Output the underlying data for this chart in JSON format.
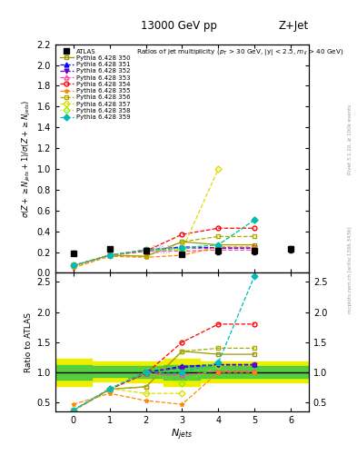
{
  "title_top": "13000 GeV pp",
  "title_right": "Z+Jet",
  "subtitle": "Ratios of jet multiplicity (p_{T} > 30 GeV, |y| < 2.5, m_{ll} > 40 GeV)",
  "ylabel_main": "σ(Z + ≥ N_{jets}+1) / σ(Z + ≥ N_{jets})",
  "ylabel_ratio": "Ratio to ATLAS",
  "xlabel": "N_{jets}",
  "right_label": "Rivet 3.1.10, ≥ 100k events",
  "watermark": "mcplots.cern.ch [arXiv:1306.3436]",
  "xlim": [
    -0.5,
    6.5
  ],
  "ylim_main": [
    0.0,
    2.2
  ],
  "ylim_ratio": [
    0.35,
    2.65
  ],
  "yticks_main": [
    0.0,
    0.2,
    0.4,
    0.6,
    0.8,
    1.0,
    1.2,
    1.4,
    1.6,
    1.8,
    2.0,
    2.2
  ],
  "yticks_ratio": [
    0.5,
    1.0,
    1.5,
    2.0,
    2.5
  ],
  "xticks": [
    0,
    1,
    2,
    3,
    4,
    5,
    6
  ],
  "atlas_x": [
    0,
    1,
    2,
    3,
    4,
    5,
    6
  ],
  "atlas_y": [
    0.19,
    0.23,
    0.21,
    0.18,
    0.21,
    0.21,
    0.23
  ],
  "atlas_yerr_lo": [
    0.02,
    0.02,
    0.02,
    0.02,
    0.03,
    0.03,
    0.03
  ],
  "atlas_yerr_hi": [
    0.02,
    0.02,
    0.02,
    0.02,
    0.03,
    0.03,
    0.03
  ],
  "band_edges": [
    -0.5,
    0.5,
    1.5,
    2.5,
    3.5,
    4.5,
    5.5,
    6.5
  ],
  "outer_lo": [
    0.78,
    0.85,
    0.83,
    0.78,
    0.83,
    0.83,
    0.83
  ],
  "outer_hi": [
    1.22,
    1.18,
    1.18,
    1.22,
    1.18,
    1.18,
    1.18
  ],
  "inner_lo": [
    0.88,
    0.93,
    0.91,
    0.88,
    0.91,
    0.91,
    0.91
  ],
  "inner_hi": [
    1.12,
    1.1,
    1.1,
    1.12,
    1.1,
    1.1,
    1.1
  ],
  "series": [
    {
      "label": "Pythia 6.428 350",
      "color": "#999900",
      "marker": "s",
      "ls": "-",
      "fillstyle": "none",
      "x": [
        0,
        1,
        2,
        3,
        4,
        5
      ],
      "y": [
        0.07,
        0.17,
        0.16,
        0.3,
        0.27,
        0.27
      ],
      "ratio": [
        0.37,
        0.72,
        0.76,
        1.35,
        1.3,
        1.3
      ]
    },
    {
      "label": "Pythia 6.428 351",
      "color": "#0000ff",
      "marker": "^",
      "ls": "--",
      "fillstyle": "full",
      "x": [
        0,
        1,
        2,
        3,
        4,
        5
      ],
      "y": [
        0.07,
        0.17,
        0.22,
        0.25,
        0.24,
        0.24
      ],
      "ratio": [
        0.37,
        0.72,
        1.0,
        1.1,
        1.13,
        1.13
      ]
    },
    {
      "label": "Pythia 6.428 352",
      "color": "#6600cc",
      "marker": "v",
      "ls": "--",
      "fillstyle": "full",
      "x": [
        0,
        1,
        2,
        3,
        4,
        5
      ],
      "y": [
        0.07,
        0.17,
        0.22,
        0.24,
        0.24,
        0.24
      ],
      "ratio": [
        0.37,
        0.72,
        1.0,
        1.08,
        1.12,
        1.12
      ]
    },
    {
      "label": "Pythia 6.428 353",
      "color": "#ff44aa",
      "marker": "^",
      "ls": "--",
      "fillstyle": "none",
      "x": [
        0,
        1,
        2,
        3,
        4,
        5
      ],
      "y": [
        0.07,
        0.17,
        0.21,
        0.21,
        0.22,
        0.22
      ],
      "ratio": [
        0.37,
        0.72,
        0.98,
        0.95,
        1.02,
        1.02
      ]
    },
    {
      "label": "Pythia 6.428 354",
      "color": "#ff0000",
      "marker": "o",
      "ls": "--",
      "fillstyle": "none",
      "x": [
        0,
        1,
        2,
        3,
        4,
        5
      ],
      "y": [
        0.07,
        0.17,
        0.21,
        0.37,
        0.43,
        0.43
      ],
      "ratio": [
        0.37,
        0.72,
        0.98,
        1.5,
        1.8,
        1.8
      ]
    },
    {
      "label": "Pythia 6.428 355",
      "color": "#ff8800",
      "marker": "*",
      "ls": "--",
      "fillstyle": "full",
      "x": [
        0,
        1,
        2,
        3,
        4,
        5
      ],
      "y": [
        0.05,
        0.16,
        0.15,
        0.17,
        0.25,
        0.25
      ],
      "ratio": [
        0.47,
        0.65,
        0.53,
        0.47,
        1.0,
        1.0
      ]
    },
    {
      "label": "Pythia 6.428 356",
      "color": "#aaaa00",
      "marker": "s",
      "ls": "--",
      "fillstyle": "none",
      "x": [
        0,
        1,
        2,
        3,
        4,
        5
      ],
      "y": [
        0.07,
        0.17,
        0.16,
        0.3,
        0.35,
        0.35
      ],
      "ratio": [
        0.37,
        0.72,
        0.76,
        1.35,
        1.4,
        1.4
      ]
    },
    {
      "label": "Pythia 6.428 357",
      "color": "#dddd00",
      "marker": "D",
      "ls": "--",
      "fillstyle": "none",
      "x": [
        0,
        1,
        2,
        3,
        4
      ],
      "y": [
        0.07,
        0.17,
        0.22,
        0.22,
        1.0
      ],
      "ratio": [
        0.37,
        0.73,
        0.65,
        0.65,
        null
      ]
    },
    {
      "label": "Pythia 6.428 358",
      "color": "#99ee00",
      "marker": "D",
      "ls": ":",
      "fillstyle": "none",
      "x": [
        0,
        1,
        2,
        3,
        4,
        5
      ],
      "y": [
        0.07,
        0.17,
        0.22,
        0.23,
        0.27,
        0.51
      ],
      "ratio": [
        0.37,
        0.73,
        1.0,
        0.82,
        1.1,
        null
      ]
    },
    {
      "label": "Pythia 6.428 359",
      "color": "#00bbbb",
      "marker": "D",
      "ls": "--",
      "fillstyle": "full",
      "x": [
        0,
        1,
        2,
        3,
        4,
        5
      ],
      "y": [
        0.07,
        0.17,
        0.22,
        0.24,
        0.27,
        0.51
      ],
      "ratio": [
        0.37,
        0.73,
        1.0,
        1.0,
        1.16,
        2.6
      ]
    }
  ]
}
